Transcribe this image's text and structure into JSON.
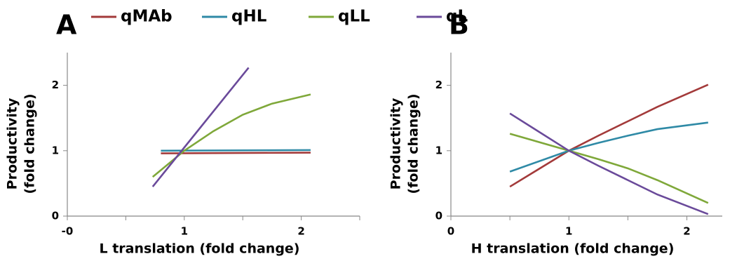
{
  "chart_data": [
    {
      "type": "line",
      "label": "A",
      "xlabel": "L translation (fold change)",
      "ylabel": [
        "Productivity",
        "(fold change)"
      ],
      "xlim": [
        0,
        2.5
      ],
      "xticks": [
        {
          "value": 0,
          "label": "-0"
        },
        1,
        2
      ],
      "xminor": [
        0.5,
        1.5,
        2.5
      ],
      "ylim": [
        0,
        2.5
      ],
      "yticks": [
        0,
        1,
        2
      ],
      "series": [
        {
          "name": "qMAb",
          "color": "#a33a3a",
          "x": [
            0.8,
            2.08
          ],
          "values": [
            0.96,
            0.97
          ]
        },
        {
          "name": "qHL",
          "color": "#2f8aa6",
          "x": [
            0.8,
            2.08
          ],
          "values": [
            1.0,
            1.01
          ]
        },
        {
          "name": "qLL",
          "color": "#7fa83a",
          "x": [
            0.73,
            1,
            1.25,
            1.5,
            1.75,
            2.08
          ],
          "values": [
            0.6,
            1.0,
            1.3,
            1.55,
            1.72,
            1.86
          ]
        },
        {
          "name": "qL",
          "color": "#6a4a9a",
          "x": [
            0.73,
            1.55
          ],
          "values": [
            0.45,
            2.27
          ]
        }
      ]
    },
    {
      "type": "line",
      "label": "B",
      "xlabel": "H translation (fold change)",
      "ylabel": [
        "Productivity",
        "(fold change)"
      ],
      "xlim": [
        0,
        2.3
      ],
      "xticks": [
        0,
        1,
        2
      ],
      "xminor": [
        0.5,
        1.5
      ],
      "ylim": [
        0,
        2.5
      ],
      "yticks": [
        0,
        1,
        2
      ],
      "series": [
        {
          "color": "#a33a3a",
          "x": [
            0.5,
            1,
            1.25,
            1.5,
            1.75,
            2.18
          ],
          "values": [
            0.45,
            1.0,
            1.23,
            1.45,
            1.67,
            2.01
          ]
        },
        {
          "color": "#2f8aa6",
          "x": [
            0.5,
            1,
            1.25,
            1.5,
            1.75,
            2.18
          ],
          "values": [
            0.68,
            1.0,
            1.12,
            1.23,
            1.33,
            1.43
          ]
        },
        {
          "color": "#7fa83a",
          "x": [
            0.5,
            1,
            1.25,
            1.5,
            1.75,
            2.18
          ],
          "values": [
            1.26,
            1.0,
            0.87,
            0.73,
            0.55,
            0.2
          ]
        },
        {
          "color": "#6a4a9a",
          "x": [
            0.5,
            1,
            1.25,
            1.5,
            1.75,
            2.18
          ],
          "values": [
            1.57,
            1.0,
            0.77,
            0.55,
            0.33,
            0.03
          ]
        }
      ]
    }
  ]
}
